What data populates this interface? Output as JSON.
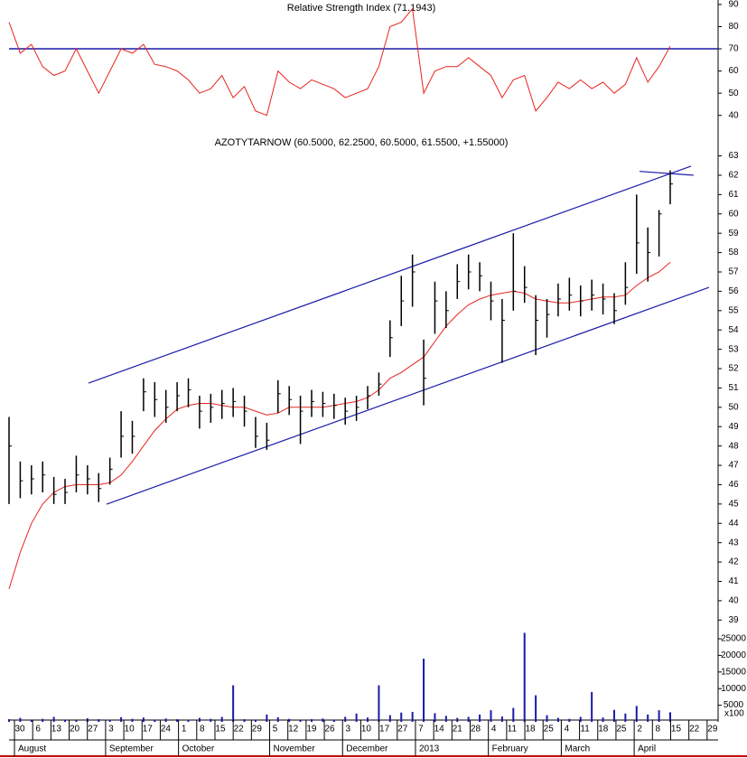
{
  "chart_data": {
    "type": "ohlc",
    "rsi": {
      "title": "Relative Strength Index (71.1943)",
      "color": "#e8231e",
      "reference": 70,
      "reference_color": "#1a1aa8",
      "ylim": [
        35,
        92
      ],
      "yticks": [
        40,
        50,
        60,
        70,
        80,
        90
      ],
      "values": [
        82,
        68,
        72,
        62,
        58,
        60,
        70,
        60,
        50,
        60,
        70,
        68,
        72,
        63,
        62,
        60,
        56,
        50,
        52,
        58,
        48,
        53,
        42,
        40,
        60,
        55,
        52,
        56,
        54,
        52,
        48,
        50,
        52,
        62,
        80,
        82,
        88,
        50,
        60,
        62,
        62,
        66,
        62,
        58,
        48,
        56,
        58,
        42,
        48,
        55,
        52,
        56,
        52,
        55,
        50,
        54,
        66,
        55,
        62,
        71.1943
      ]
    },
    "price": {
      "title": "AZOTYTARNOW (60.5000, 62.2500, 60.5000, 61.5500, +1.55000)",
      "color": "#000000",
      "ylim": [
        38.5,
        64.1
      ],
      "yticks": [
        39,
        40,
        41,
        42,
        43,
        44,
        45,
        46,
        47,
        48,
        49,
        50,
        51,
        52,
        53,
        54,
        55,
        56,
        57,
        58,
        59,
        60,
        61,
        62,
        63
      ],
      "close": [
        48.0,
        46.2,
        46.3,
        46.5,
        45.5,
        45.6,
        46.5,
        46.3,
        45.8,
        46.8,
        48.5,
        48.5,
        50.8,
        50.4,
        50.0,
        50.6,
        50.9,
        49.8,
        50.0,
        50.2,
        50.3,
        49.8,
        48.5,
        48.3,
        50.7,
        50.4,
        49.8,
        50.3,
        50.2,
        50.1,
        49.8,
        50.0,
        50.6,
        51.2,
        53.6,
        55.5,
        57.0,
        51.5,
        55.5,
        55.0,
        56.5,
        57.0,
        56.8,
        55.5,
        54.5,
        56.0,
        56.2,
        54.5,
        54.8,
        55.6,
        55.8,
        55.5,
        55.8,
        55.6,
        55.0,
        56.2,
        58.5,
        58.0,
        60.0,
        61.55
      ],
      "high": [
        49.5,
        47.2,
        47.0,
        47.2,
        46.4,
        46.3,
        47.5,
        47.0,
        46.6,
        47.4,
        49.8,
        49.3,
        51.5,
        51.3,
        50.9,
        51.3,
        51.5,
        50.6,
        50.7,
        50.9,
        51.0,
        50.6,
        49.5,
        49.2,
        51.4,
        51.1,
        50.6,
        50.9,
        50.8,
        50.7,
        50.5,
        50.6,
        51.1,
        51.8,
        54.5,
        56.8,
        57.9,
        53.5,
        56.5,
        56.0,
        57.4,
        57.9,
        57.5,
        56.5,
        55.6,
        59.0,
        57.3,
        55.8,
        55.6,
        56.4,
        56.7,
        56.3,
        56.6,
        56.4,
        55.9,
        57.5,
        61.0,
        59.3,
        60.2,
        62.25
      ],
      "low": [
        45.0,
        45.3,
        45.5,
        45.6,
        45.0,
        45.0,
        45.6,
        45.5,
        45.1,
        46.0,
        47.4,
        47.6,
        49.8,
        49.5,
        49.2,
        49.8,
        50.0,
        48.9,
        49.2,
        49.4,
        49.5,
        49.0,
        47.9,
        47.8,
        49.7,
        49.6,
        48.1,
        49.5,
        49.5,
        49.4,
        49.1,
        49.3,
        49.9,
        50.6,
        52.6,
        54.2,
        55.2,
        50.1,
        53.8,
        54.1,
        55.6,
        56.1,
        56.0,
        54.5,
        52.3,
        55.0,
        55.4,
        52.7,
        53.6,
        54.7,
        55.0,
        54.7,
        55.0,
        54.8,
        54.3,
        55.3,
        56.9,
        56.5,
        57.8,
        60.5
      ],
      "ma": {
        "color": "#e8231e",
        "values": [
          40.6,
          42.5,
          44.0,
          45.0,
          45.6,
          45.9,
          46.0,
          46.0,
          46.0,
          46.1,
          46.5,
          47.2,
          48.0,
          48.8,
          49.4,
          49.9,
          50.1,
          50.2,
          50.2,
          50.1,
          50.0,
          50.0,
          49.8,
          49.6,
          49.7,
          50.0,
          50.0,
          50.0,
          50.0,
          50.1,
          50.2,
          50.3,
          50.5,
          50.9,
          51.5,
          51.8,
          52.2,
          52.6,
          53.4,
          54.2,
          54.8,
          55.3,
          55.6,
          55.8,
          55.9,
          56.0,
          55.9,
          55.6,
          55.5,
          55.4,
          55.4,
          55.5,
          55.6,
          55.7,
          55.7,
          55.8,
          56.3,
          56.7,
          57.0,
          57.5
        ]
      },
      "trendlines": {
        "color": "#1a1aa8",
        "lines": [
          [
            51.25,
            62.47
          ],
          [
            44.99,
            56.2
          ],
          [
            62.2,
            62.0
          ]
        ]
      }
    },
    "volume": {
      "color": "#1a1aa8",
      "unit": "x100",
      "ylim": [
        0,
        28000
      ],
      "yticks": [
        5000,
        10000,
        15000,
        20000,
        25000
      ],
      "values": [
        800,
        1200,
        600,
        900,
        1500,
        700,
        500,
        1100,
        800,
        600,
        1400,
        900,
        1300,
        700,
        1000,
        800,
        600,
        1200,
        900,
        1500,
        11000,
        800,
        700,
        2200,
        1400,
        900,
        600,
        800,
        1000,
        700,
        1500,
        2500,
        1300,
        11000,
        2000,
        2800,
        3000,
        19000,
        2600,
        1800,
        1200,
        1500,
        2200,
        3500,
        1600,
        4200,
        26800,
        8000,
        2000,
        1200,
        900,
        1500,
        9000,
        1300,
        3600,
        2500,
        4800,
        2200,
        3500,
        2900
      ]
    },
    "x_axis": {
      "months": [
        {
          "name": "August",
          "weeks": [
            "30",
            "6",
            "13",
            "20",
            "27"
          ]
        },
        {
          "name": "September",
          "weeks": [
            "3",
            "10",
            "17",
            "24"
          ]
        },
        {
          "name": "October",
          "weeks": [
            "1",
            "8",
            "15",
            "22",
            "29"
          ]
        },
        {
          "name": "November",
          "weeks": [
            "5",
            "12",
            "19",
            "26"
          ]
        },
        {
          "name": "December",
          "weeks": [
            "3",
            "10",
            "17",
            "27"
          ]
        },
        {
          "name": "2013",
          "weeks": [
            "7",
            "14",
            "21",
            "28"
          ]
        },
        {
          "name": "February",
          "weeks": [
            "4",
            "11",
            "18",
            "25"
          ]
        },
        {
          "name": "March",
          "weeks": [
            "4",
            "11",
            "18",
            "25"
          ]
        },
        {
          "name": "April",
          "weeks": [
            "2",
            "8",
            "15",
            "22",
            "29"
          ]
        }
      ]
    }
  }
}
